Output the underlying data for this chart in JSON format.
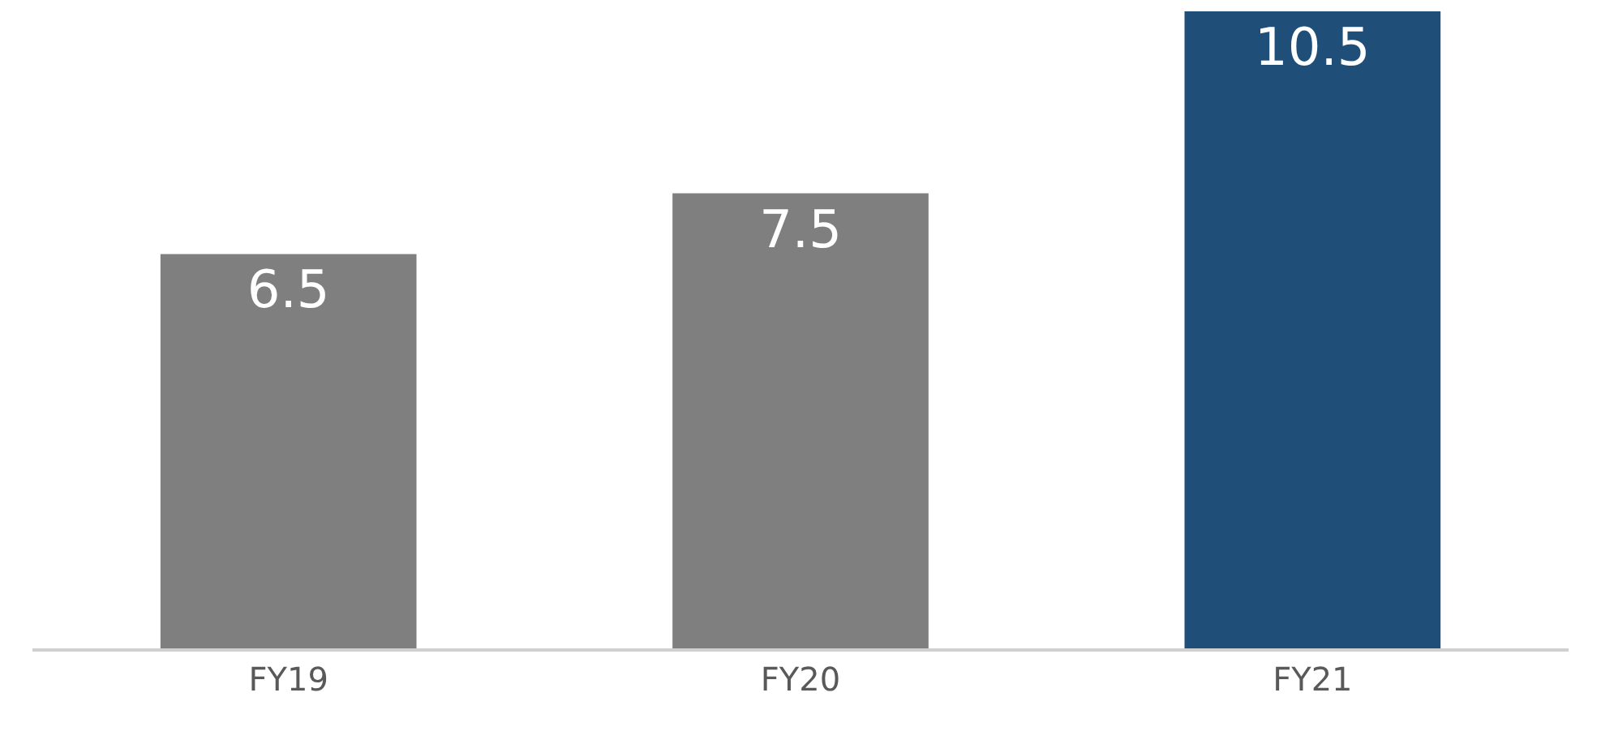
{
  "chart_data": {
    "type": "bar",
    "categories": [
      "FY19",
      "FY20",
      "FY21"
    ],
    "values": [
      6.5,
      7.5,
      10.5
    ],
    "colors": [
      "#7f7f7f",
      "#7f7f7f",
      "#1f4e79"
    ],
    "data_labels": true,
    "grid": false,
    "legend": false
  }
}
